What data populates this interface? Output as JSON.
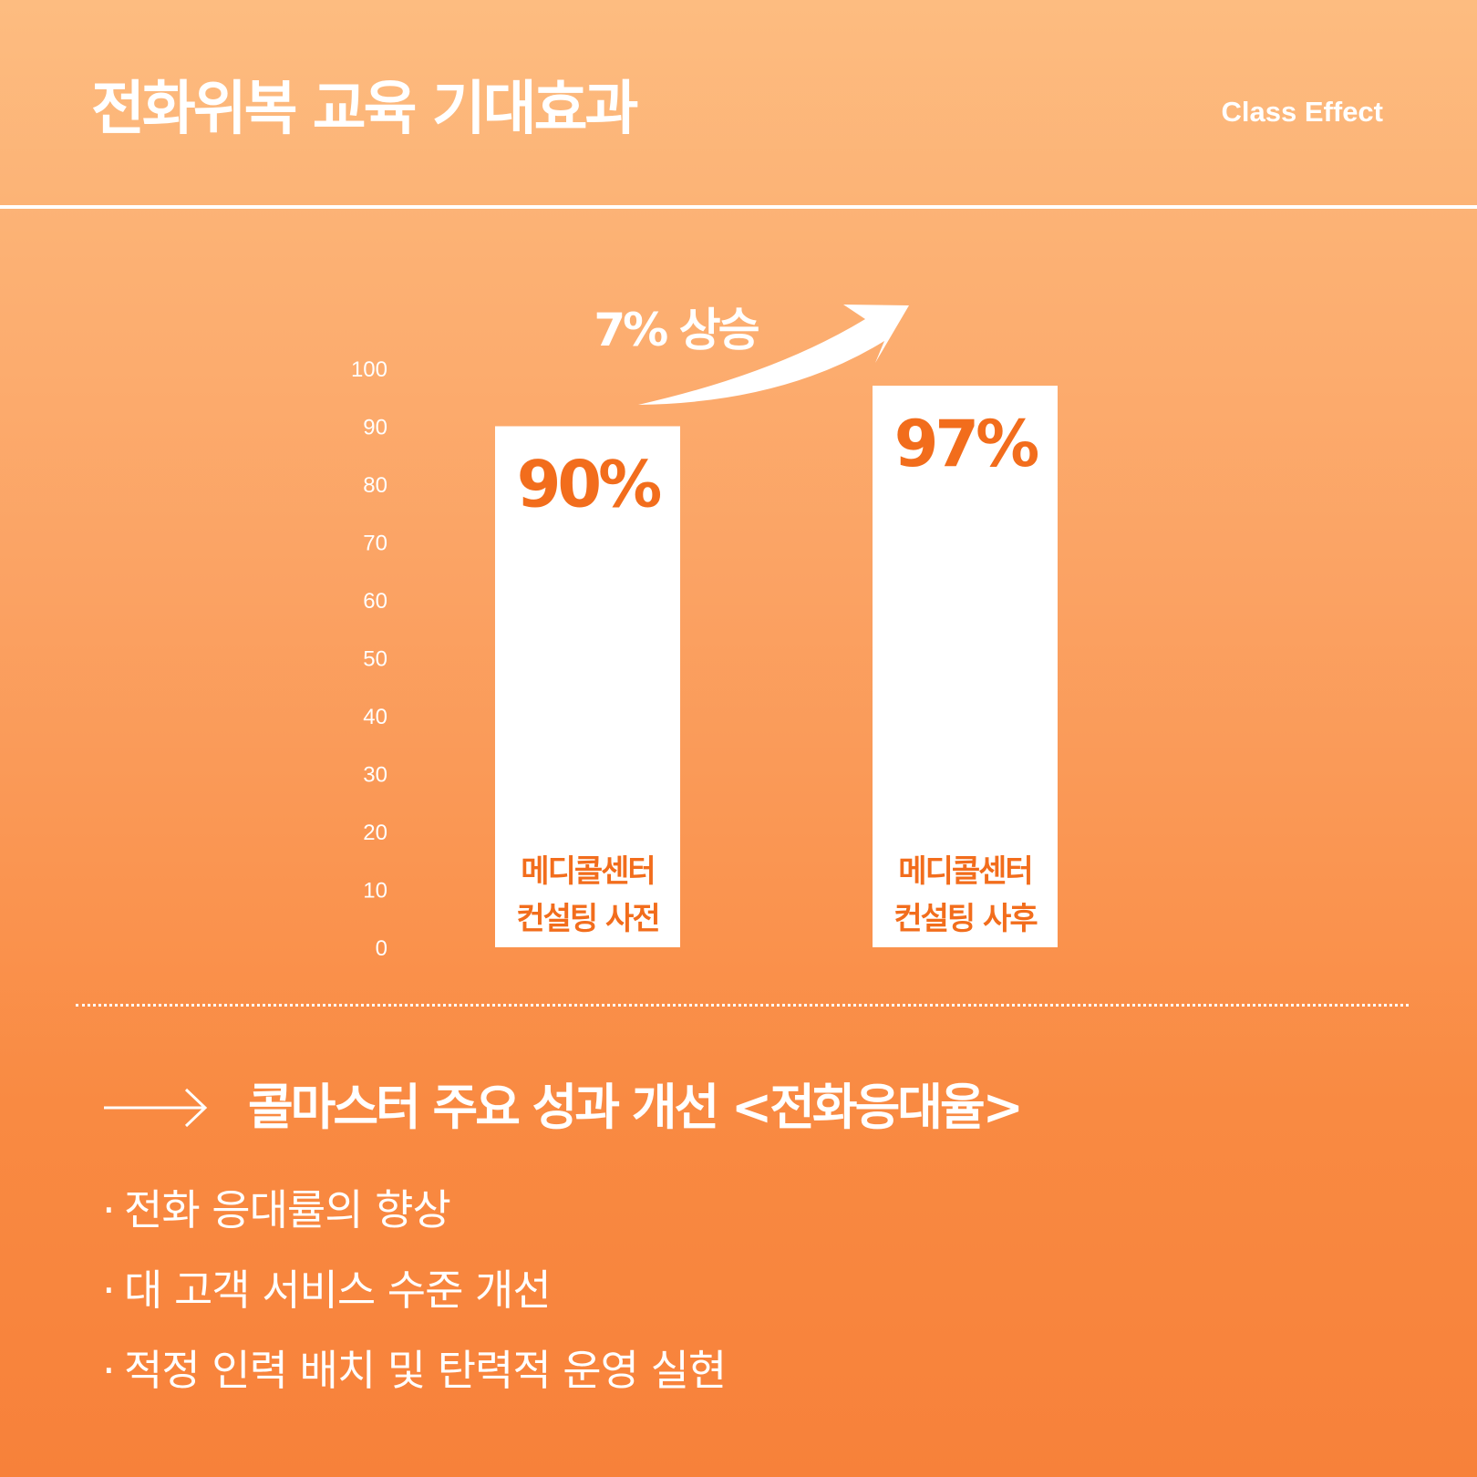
{
  "header": {
    "title": "전화위복 교육 기대효과",
    "subtitle": "Class Effect"
  },
  "chart_data": {
    "type": "bar",
    "categories": [
      "메디콜센터 컨설팅 사전",
      "메디콜센터 컨설팅 사후"
    ],
    "category_lines": [
      [
        "메디콜센터",
        "컨설팅 사전"
      ],
      [
        "메디콜센터",
        "컨설팅 사후"
      ]
    ],
    "values": [
      90,
      97
    ],
    "value_labels": [
      "90%",
      "97%"
    ],
    "ylim": [
      0,
      100
    ],
    "yticks": [
      0,
      10,
      20,
      30,
      40,
      50,
      60,
      70,
      80,
      90,
      100
    ],
    "annotation": "7% 상승",
    "bar_color": "#ffffff",
    "label_color": "#f26d1c",
    "grid": false
  },
  "feature": {
    "icon": "long-arrow-right-icon",
    "title": "콜마스터 주요 성과 개선 <전화응대율>"
  },
  "bullets": [
    "전화 응대률의 향상",
    "대 고객 서비스 수준 개선",
    "적정 인력 배치 및 탄력적 운영 실현"
  ],
  "bullet_marker": "·",
  "colors": {
    "accent": "#f26d1c",
    "background_top": "#fdbc80",
    "background_bottom": "#f7813a",
    "text": "#ffffff"
  }
}
